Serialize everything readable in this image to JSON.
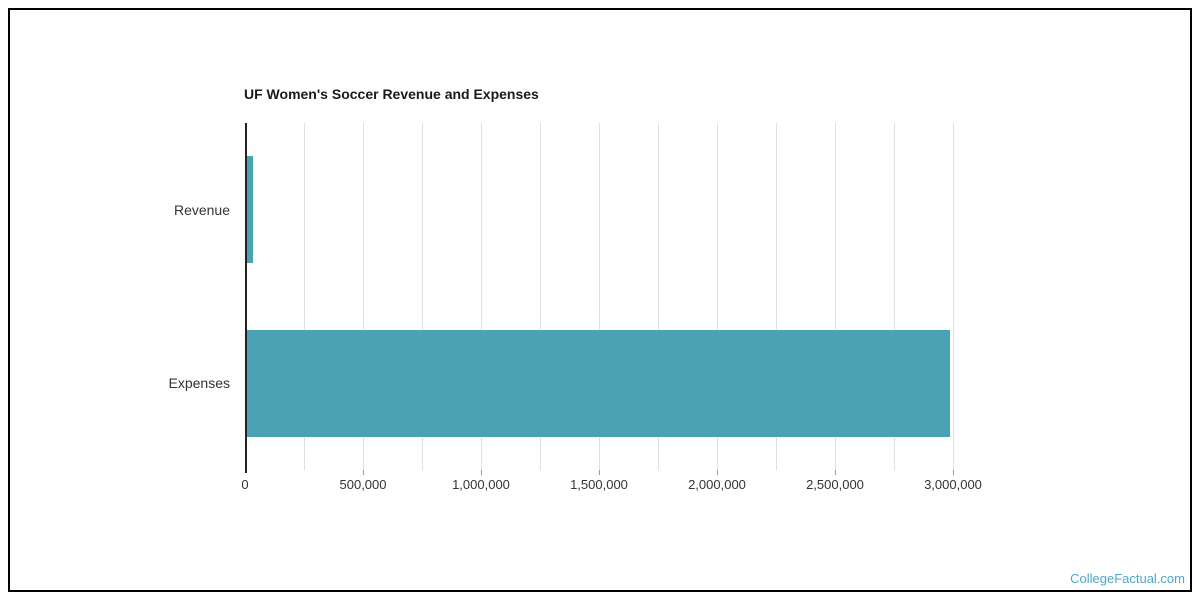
{
  "page": {
    "background": "#ffffff",
    "border_color": "#000000",
    "watermark_text": "CollegeFactual.com",
    "watermark_color": "#4fa6c8"
  },
  "chart_data": {
    "type": "bar",
    "orientation": "horizontal",
    "title": "UF Women's Soccer Revenue and Expenses",
    "categories": [
      "Revenue",
      "Expenses"
    ],
    "values": [
      25000,
      2980000
    ],
    "xlabel": "",
    "ylabel": "",
    "value_axis": {
      "min": 0,
      "max": 3000000,
      "tick_interval": 500000,
      "gridline_interval": 250000,
      "tick_labels": [
        "0",
        "500,000",
        "1,000,000",
        "1,500,000",
        "2,000,000",
        "2,500,000",
        "3,000,000"
      ]
    },
    "legend": "none",
    "grid": true,
    "colors": {
      "bar": "#4ba2b2",
      "gridline": "#e0e0e0",
      "axis_line": "#222222",
      "tick": "#999999",
      "title": "#1a1a1a",
      "label": "#333333"
    }
  }
}
